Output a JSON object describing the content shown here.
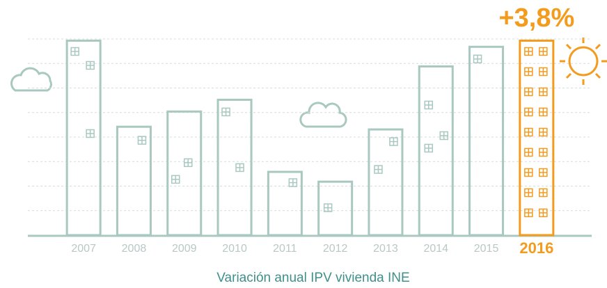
{
  "chart_data": {
    "type": "bar",
    "categories": [
      "2007",
      "2008",
      "2009",
      "2010",
      "2011",
      "2012",
      "2013",
      "2014",
      "2015",
      "2016"
    ],
    "values": [
      7.93,
      4.42,
      5.04,
      5.52,
      2.58,
      2.18,
      4.31,
      6.88,
      7.68,
      7.93
    ],
    "color": "#a8c8c0",
    "colors": [
      "#a8c8c0",
      "#a8c8c0",
      "#a8c8c0",
      "#a8c8c0",
      "#a8c8c0",
      "#a8c8c0",
      "#a8c8c0",
      "#a8c8c0",
      "#a8c8c0",
      "#f39b1d"
    ],
    "ylim": [
      0,
      8
    ],
    "yticks": [
      1,
      2,
      3,
      4,
      5,
      6,
      7,
      8
    ],
    "grid": true,
    "annotation": "+3,8%",
    "x_label": "Variación anual IPV vivienda INE"
  }
}
